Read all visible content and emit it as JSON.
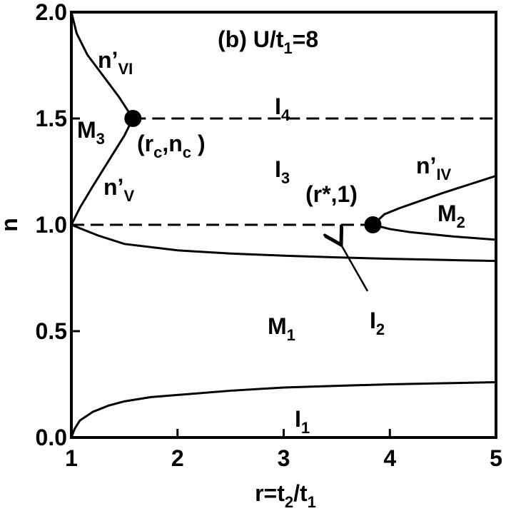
{
  "chart_data": {
    "type": "line",
    "xlabel": [
      {
        "text": "r=t"
      },
      {
        "text": "2",
        "sub": true
      },
      {
        "text": "/t"
      },
      {
        "text": "1",
        "sub": true
      }
    ],
    "ylabel": [
      {
        "text": "n"
      }
    ],
    "xlim": [
      1,
      5
    ],
    "ylim": [
      0,
      2
    ],
    "xticks": [
      1,
      2,
      3,
      4,
      5
    ],
    "yticks": [
      {
        "value": 0,
        "label": "0.0"
      },
      {
        "value": 0.5,
        "label": "0.5"
      },
      {
        "value": 1,
        "label": "1.0"
      },
      {
        "value": 1.5,
        "label": "1.5"
      },
      {
        "value": 2,
        "label": "2.0"
      }
    ],
    "series": [
      {
        "color": "#000000",
        "x": [
          1,
          1.03,
          1.08,
          1.2,
          1.35,
          1.5,
          1.75,
          2,
          2.5,
          3,
          3.5,
          4,
          4.5,
          5
        ],
        "values": [
          0,
          0.04,
          0.08,
          0.12,
          0.15,
          0.17,
          0.19,
          0.2,
          0.22,
          0.235,
          0.243,
          0.25,
          0.255,
          0.26
        ]
      },
      {
        "color": "#000000",
        "x": [
          1,
          1.25,
          1.5,
          2,
          2.5,
          3,
          3.5,
          4,
          4.5,
          5
        ],
        "values": [
          1.0,
          0.95,
          0.91,
          0.88,
          0.865,
          0.855,
          0.847,
          0.84,
          0.835,
          0.83
        ]
      },
      {
        "color": "#000000",
        "x": [
          1,
          1.08,
          1.2,
          1.35,
          1.5,
          1.58
        ],
        "values": [
          1.0,
          1.08,
          1.18,
          1.3,
          1.42,
          1.5
        ]
      },
      {
        "color": "#000000",
        "x": [
          1.58,
          1.45,
          1.3,
          1.15,
          1.05,
          1
        ],
        "values": [
          1.5,
          1.6,
          1.7,
          1.8,
          1.9,
          2.0
        ]
      },
      {
        "color": "#000000",
        "x": [
          3.84,
          3.95,
          4.1,
          4.5,
          5
        ],
        "values": [
          1.0,
          1.05,
          1.08,
          1.15,
          1.23
        ]
      },
      {
        "color": "#000000",
        "x": [
          3.84,
          4.0,
          4.2,
          4.6,
          5
        ],
        "values": [
          1.0,
          0.98,
          0.965,
          0.945,
          0.93
        ]
      },
      {
        "color": "#000000",
        "dash": true,
        "x": [
          1.58,
          5
        ],
        "values": [
          1.5,
          1.5
        ]
      },
      {
        "color": "#000000",
        "dash": true,
        "x": [
          1,
          3.84
        ],
        "values": [
          1.0,
          1.0
        ]
      },
      {
        "color": "#000000",
        "marker": true,
        "x": [
          1.58,
          3.84
        ],
        "values": [
          1.5,
          1.0
        ]
      }
    ],
    "annotations": [
      [
        {
          "text": "(b) U/t"
        },
        {
          "text": "1",
          "sub": true
        },
        {
          "text": "=8"
        }
      ],
      [
        {
          "text": "n’"
        },
        {
          "text": "VI",
          "sub": true
        }
      ],
      [
        {
          "text": "I"
        },
        {
          "text": "4",
          "sub": true
        }
      ],
      [
        {
          "text": "M"
        },
        {
          "text": "3",
          "sub": true
        }
      ],
      [
        {
          "text": "(r"
        },
        {
          "text": "c",
          "sub": true
        },
        {
          "text": ",n"
        },
        {
          "text": "c",
          "sub": true
        },
        {
          "text": " )"
        }
      ],
      [
        {
          "text": "I"
        },
        {
          "text": "3",
          "sub": true
        }
      ],
      [
        {
          "text": "n’"
        },
        {
          "text": "IV",
          "sub": true
        }
      ],
      [
        {
          "text": "(r*,1)"
        }
      ],
      [
        {
          "text": "n’"
        },
        {
          "text": "V",
          "sub": true
        }
      ],
      [
        {
          "text": "M"
        },
        {
          "text": "2",
          "sub": true
        }
      ],
      [
        {
          "text": "I"
        },
        {
          "text": "2",
          "sub": true
        }
      ],
      [
        {
          "text": "M"
        },
        {
          "text": "1",
          "sub": true
        }
      ],
      [
        {
          "text": "I"
        },
        {
          "text": "1",
          "sub": true
        }
      ]
    ]
  }
}
